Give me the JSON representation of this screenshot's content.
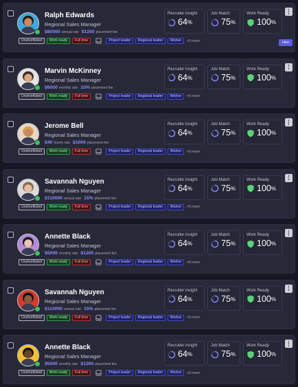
{
  "candidates": [
    {
      "name": "Ralph Edwards",
      "role": "Regional Sales Manager",
      "rate": "$80000",
      "rate_label": "annual rate",
      "fee": "$1200",
      "fee_label": "placement fee",
      "recruiter_insight": "64",
      "job_match": "75",
      "work_ready": "100",
      "status_tag": "Unshortlisted",
      "work_tag": "Work ready",
      "type_tag": "Full time",
      "skills": [
        "Project leader",
        "Regional leader",
        "Worker"
      ],
      "more_skills": "+5 more",
      "action": "Hire",
      "avatar_bg": "#3fa9e0",
      "skin": "#c98a64",
      "hair": "#2a1a14"
    },
    {
      "name": "Marvin McKinney",
      "role": "Regional Sales Manager",
      "rate": "$6000",
      "rate_label": "monthly rate",
      "fee": "10%",
      "fee_label": "placement fee",
      "recruiter_insight": "64",
      "job_match": "75",
      "work_ready": "100",
      "status_tag": "Unshortlisted",
      "work_tag": "Work ready",
      "type_tag": "Full time",
      "skills": [
        "Project leader",
        "Regional leader",
        "Worker"
      ],
      "more_skills": "+5 more",
      "avatar_bg": "#e4e4e4",
      "skin": "#d9a884",
      "hair": "#3b2a22"
    },
    {
      "name": "Jerome Bell",
      "role": "Regional Sales Manager",
      "rate": "$40",
      "rate_label": "hourly rate",
      "fee": "$1000",
      "fee_label": "placement fee",
      "recruiter_insight": "64",
      "job_match": "75",
      "work_ready": "100",
      "status_tag": "Unshortlisted",
      "work_tag": "Work ready",
      "type_tag": "Full time",
      "skills": [
        "Project leader",
        "Regional leader",
        "Worker"
      ],
      "more_skills": "+5 more",
      "avatar_bg": "#e8d7c8",
      "skin": "#c78b62",
      "hair": "#d9a24c"
    },
    {
      "name": "Savannah Nguyen",
      "role": "Regional Sales Manager",
      "rate": "$110000",
      "rate_label": "annual rate",
      "fee": "15%",
      "fee_label": "placement fee",
      "recruiter_insight": "64",
      "job_match": "75",
      "work_ready": "100",
      "status_tag": "Unshortlisted",
      "work_tag": "Work ready",
      "type_tag": "Full time",
      "skills": [
        "Project leader",
        "Regional leader",
        "Worker"
      ],
      "more_skills": "+5 more",
      "avatar_bg": "#dcdcdc",
      "skin": "#e3bfa3",
      "hair": "#8a6a4a"
    },
    {
      "name": "Annette Black",
      "role": "Regional Sales Manager",
      "rate": "$5000",
      "rate_label": "monthly rate",
      "fee": "$1200",
      "fee_label": "placement fee",
      "recruiter_insight": "64",
      "job_match": "75",
      "work_ready": "100",
      "status_tag": "Unshortlisted",
      "work_tag": "Work ready",
      "type_tag": "Full time",
      "skills": [
        "Project leader",
        "Regional leader",
        "Worker"
      ],
      "more_skills": "+5 more",
      "avatar_bg": "#b58ad8",
      "skin": "#e8c4b4",
      "hair": "#1e1a22"
    },
    {
      "name": "Savannah Nguyen",
      "role": "Regional Sales Manager",
      "rate": "$110000",
      "rate_label": "annual rate",
      "fee": "15%",
      "fee_label": "placement fee",
      "recruiter_insight": "64",
      "job_match": "75",
      "work_ready": "100",
      "status_tag": "Unshortlisted",
      "work_tag": "Work ready",
      "type_tag": "Full time",
      "skills": [
        "Project leader",
        "Regional leader",
        "Worker"
      ],
      "more_skills": "+5 more",
      "avatar_bg": "#d63a2a",
      "skin": "#8a5a44",
      "hair": "#141018"
    },
    {
      "name": "Annette Black",
      "role": "Regional Sales Manager",
      "rate": "$5000",
      "rate_label": "monthly rate",
      "fee": "$1200",
      "fee_label": "placement fee",
      "recruiter_insight": "64",
      "job_match": "75",
      "work_ready": "100",
      "status_tag": "Unshortlisted",
      "work_tag": "Work ready",
      "type_tag": "Full time",
      "skills": [
        "Project leader",
        "Regional leader",
        "Worker"
      ],
      "more_skills": "+5 more",
      "avatar_bg": "#f2c12e",
      "skin": "#6b4430",
      "hair": "#1a1210"
    }
  ],
  "labels": {
    "recruiter_insight": "Recruiter insight",
    "job_match": "Job Match",
    "work_ready": "Work Ready",
    "percent": "%"
  },
  "icons": {
    "insight": "progress-ring-icon",
    "match": "progress-ring-icon",
    "ready": "shield-icon",
    "inbox": "inbox-icon",
    "more": "more-vertical-icon"
  },
  "colors": {
    "accent": "#5b59ee",
    "rate": "#8f8cff",
    "ready": "#5fd07a",
    "ring": "#8b86ff"
  }
}
